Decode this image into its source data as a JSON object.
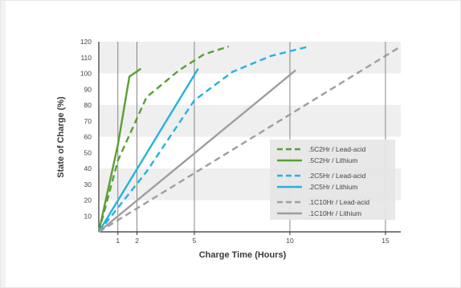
{
  "chart_data": {
    "type": "line",
    "xlabel": "Charge Time (Hours)",
    "ylabel": "State of Charge (%)",
    "xlim": [
      0,
      15.8
    ],
    "ylim": [
      0,
      120
    ],
    "x_ticks": [
      1,
      2,
      5,
      10,
      15
    ],
    "y_ticks": [
      10,
      20,
      30,
      40,
      50,
      60,
      70,
      80,
      90,
      100,
      110,
      120
    ],
    "grid": "vertical lines at x ticks, shaded horizontal bands",
    "legend_position": "lower-right",
    "series": [
      {
        "name": ".5C2Hr / Lead-acid",
        "color": "#5a9e35",
        "dash": "dashed",
        "x": [
          0,
          1,
          2.5,
          4.2,
          5.5,
          6.8
        ],
        "y": [
          0,
          45,
          85,
          102,
          112,
          117
        ]
      },
      {
        "name": ".5C2Hr / Lithium",
        "color": "#5a9e35",
        "dash": "solid",
        "x": [
          0,
          1,
          1.6,
          2.2
        ],
        "y": [
          0,
          55,
          98,
          103
        ]
      },
      {
        "name": ".2C5Hr / Lead-acid",
        "color": "#25b2e0",
        "dash": "dashed",
        "x": [
          0,
          2.5,
          5,
          7,
          9,
          11
        ],
        "y": [
          0,
          38,
          83,
          101,
          111,
          117
        ]
      },
      {
        "name": ".2C5Hr / Lithium",
        "color": "#25b2e0",
        "dash": "solid",
        "x": [
          0,
          5.2
        ],
        "y": [
          0,
          103
        ]
      },
      {
        "name": ".1C10Hr / Lead-acid",
        "color": "#9e9e9e",
        "dash": "dashed",
        "x": [
          0,
          15.8
        ],
        "y": [
          0,
          117
        ]
      },
      {
        "name": ".1C10Hr / Lithium",
        "color": "#9e9e9e",
        "dash": "solid",
        "x": [
          0,
          10.3
        ],
        "y": [
          0,
          102
        ]
      }
    ]
  }
}
